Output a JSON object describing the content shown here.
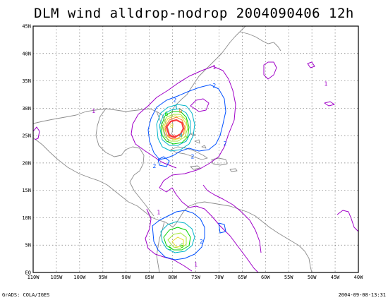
{
  "title": "DLM wind alldrop-nodrop 2004090406 12h",
  "footer_left": "GrADS: COLA/IGES",
  "footer_right": "2004-09-08-13:31",
  "map": {
    "lon_range": [
      -110,
      -40
    ],
    "lat_range": [
      0,
      45
    ],
    "lat_labels": [
      "EQ",
      "5N",
      "10N",
      "15N",
      "20N",
      "25N",
      "30N",
      "35N",
      "40N",
      "45N"
    ],
    "lon_labels": [
      "110W",
      "105W",
      "100W",
      "95W",
      "90W",
      "85W",
      "80W",
      "75W",
      "70W",
      "65W",
      "60W",
      "55W",
      "50W",
      "45W",
      "40W"
    ],
    "contour_labels": [
      {
        "text": "1",
        "lon": -71,
        "lat": 37.5,
        "color": "#a000c8"
      },
      {
        "text": "1",
        "lon": -97,
        "lat": 29.5,
        "color": "#a000c8"
      },
      {
        "text": "1",
        "lon": -47,
        "lat": 34.5,
        "color": "#a000c8"
      },
      {
        "text": "1",
        "lon": -83,
        "lat": 11,
        "color": "#a000c8"
      },
      {
        "text": "1",
        "lon": -75,
        "lat": 1.5,
        "color": "#a000c8"
      },
      {
        "text": "2",
        "lon": -71,
        "lat": 34.2,
        "color": "#0050ff"
      },
      {
        "text": "2",
        "lon": -79.5,
        "lat": 31.5,
        "color": "#0050ff"
      },
      {
        "text": "2",
        "lon": -68.7,
        "lat": 23.6,
        "color": "#0050ff"
      },
      {
        "text": "2",
        "lon": -75.7,
        "lat": 21.2,
        "color": "#0050ff"
      },
      {
        "text": "2",
        "lon": -73.8,
        "lat": 5.7,
        "color": "#0050ff"
      },
      {
        "text": "2",
        "lon": -83.9,
        "lat": 19.5,
        "color": "#0050ff"
      },
      {
        "text": "3",
        "lon": -79.3,
        "lat": 30.2,
        "color": "#00b4c8"
      },
      {
        "text": "4",
        "lon": -78.2,
        "lat": 25.1,
        "color": "#00b4c8"
      },
      {
        "text": "5",
        "lon": -80.5,
        "lat": 4.5,
        "color": "#00d200"
      },
      {
        "text": "6",
        "lon": -81.3,
        "lat": 29.0,
        "color": "#00d200"
      },
      {
        "text": "6",
        "lon": -78.0,
        "lat": 4.9,
        "color": "#00d200"
      },
      {
        "text": "7",
        "lon": -77.2,
        "lat": 24.5,
        "color": "#a0e632"
      },
      {
        "text": "8",
        "lon": -80.2,
        "lat": 26.8,
        "color": "#e6dc32"
      },
      {
        "text": "9",
        "lon": -78.3,
        "lat": 29.5,
        "color": "#f08228"
      },
      {
        "text": "10",
        "lon": -80.0,
        "lat": 24.8,
        "color": "#fa3c3c"
      }
    ]
  }
}
